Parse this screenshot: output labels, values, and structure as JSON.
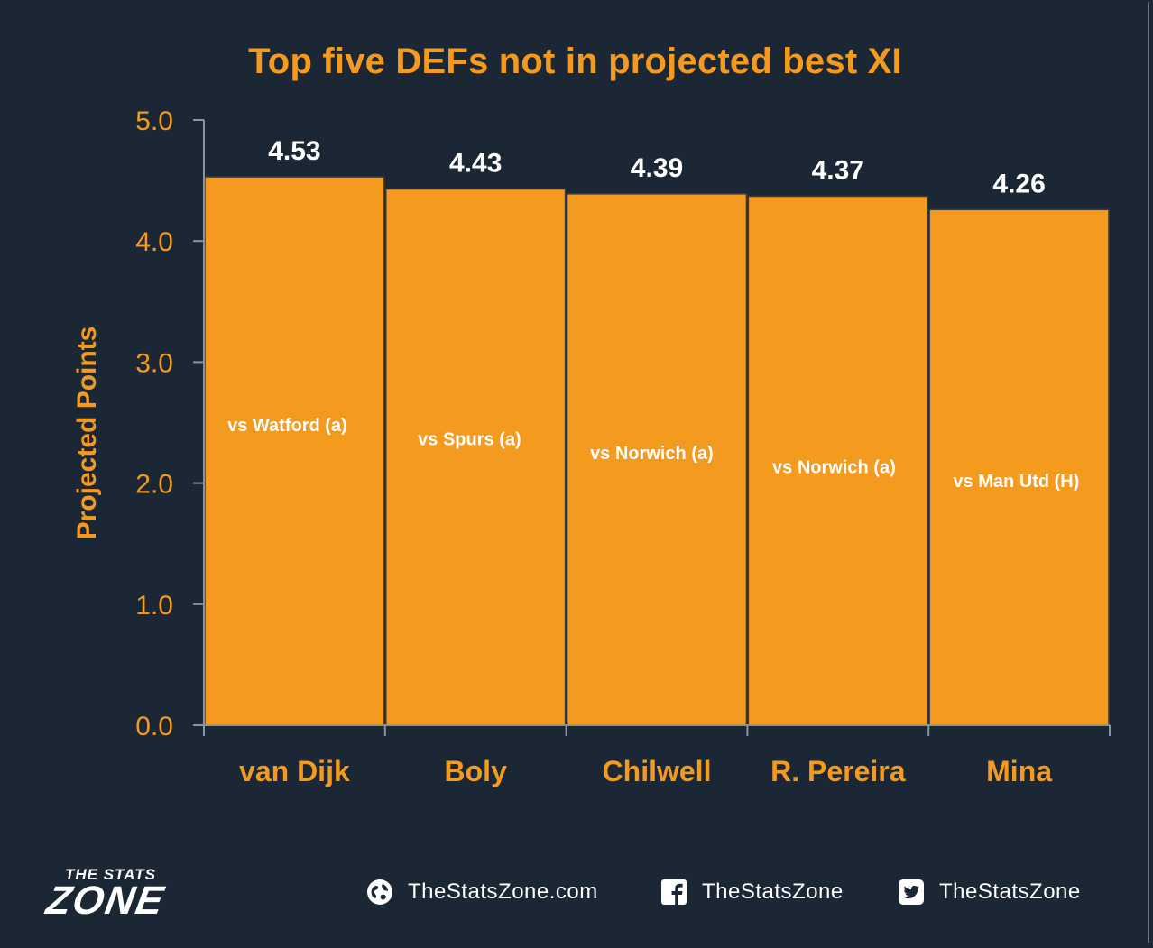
{
  "chart_data": {
    "type": "bar",
    "title": "Top five DEFs not in projected best XI",
    "ylabel": "Projected Points",
    "xlabel": "",
    "ylim": [
      0,
      5
    ],
    "yticks": [
      "0.0",
      "1.0",
      "2.0",
      "3.0",
      "4.0",
      "5.0"
    ],
    "categories": [
      "van Dijk",
      "Boly",
      "Chilwell",
      "R. Pereira",
      "Mina"
    ],
    "values": [
      4.53,
      4.43,
      4.39,
      4.37,
      4.26
    ],
    "value_labels": [
      "4.53",
      "4.43",
      "4.39",
      "4.37",
      "4.26"
    ],
    "bar_notes": [
      "vs Watford (a)",
      "vs Spurs (a)",
      "vs Norwich (a)",
      "vs Norwich (a)",
      "vs Man Utd (H)"
    ],
    "grid": false,
    "legend": "none",
    "bar_color": "#f39a1f",
    "text_color": "#f39a1f",
    "background": "#1b2735"
  },
  "footer": {
    "logo_top": "THE STATS",
    "logo_main": "ZONE",
    "website": "TheStatsZone.com",
    "facebook": "TheStatsZone",
    "twitter": "TheStatsZone"
  },
  "icons": [
    "globe-icon",
    "facebook-icon",
    "twitter-icon"
  ]
}
